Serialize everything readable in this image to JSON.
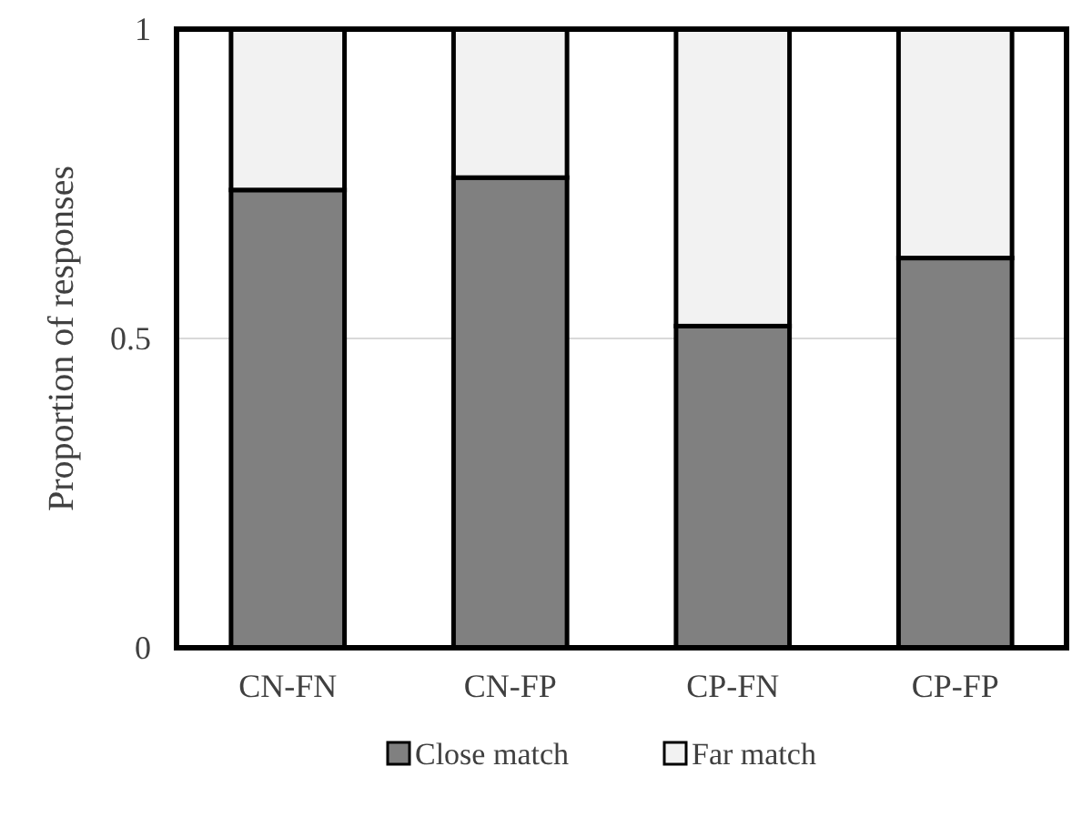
{
  "chart_data": {
    "type": "bar",
    "stacked": true,
    "ylabel": "Proportion of responses",
    "categories": [
      "CN-FN",
      "CN-FP",
      "CP-FN",
      "CP-FP"
    ],
    "series": [
      {
        "name": "Close match",
        "color": "#808080",
        "values": [
          0.74,
          0.76,
          0.52,
          0.63
        ]
      },
      {
        "name": "Far match",
        "color": "#f2f2f2",
        "values": [
          0.26,
          0.24,
          0.48,
          0.37
        ]
      }
    ],
    "ylim": [
      0,
      1
    ],
    "yticks": [
      0,
      0.5,
      1
    ],
    "grid": "y",
    "legend": "bottom"
  }
}
